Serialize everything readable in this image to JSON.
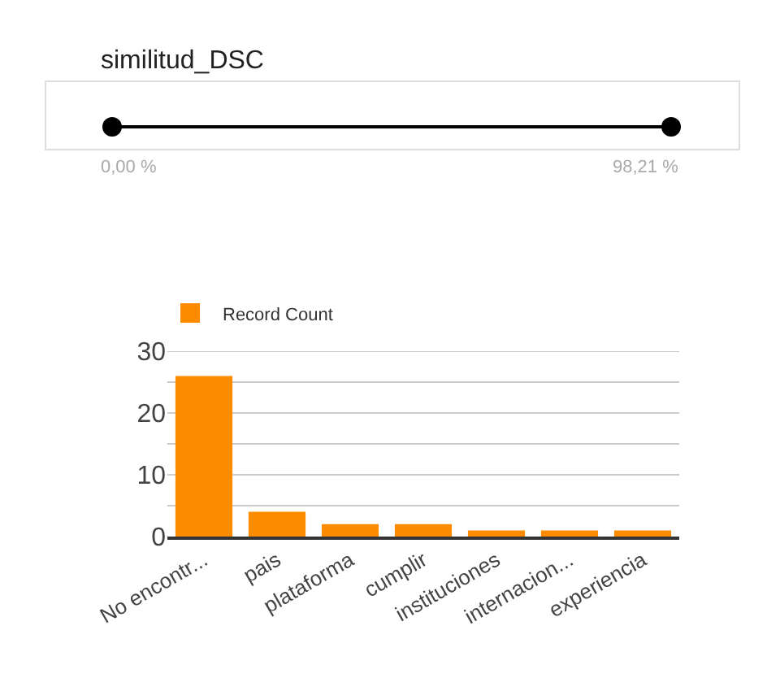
{
  "chart_data": [
    {
      "type": "other",
      "title": "similitud_DSC",
      "annotations": [
        "0,00 %",
        "98,21 %"
      ]
    },
    {
      "type": "bar",
      "categories": [
        "No encontr...",
        "pais",
        "plataforma",
        "cumplir",
        "instituciones",
        "internacion...",
        "experiencia"
      ],
      "series": [
        {
          "name": "Record Count",
          "color": "#ff8c00",
          "values": [
            26,
            4,
            2,
            2,
            1,
            1,
            1
          ]
        }
      ],
      "ylim": [
        0,
        30
      ],
      "yticks": [
        0,
        {
          "value": 5,
          "label": null
        },
        10,
        {
          "value": 15,
          "label": null
        },
        20,
        {
          "value": 25,
          "label": null
        },
        30
      ],
      "grid": "y",
      "legend": "top left"
    }
  ]
}
